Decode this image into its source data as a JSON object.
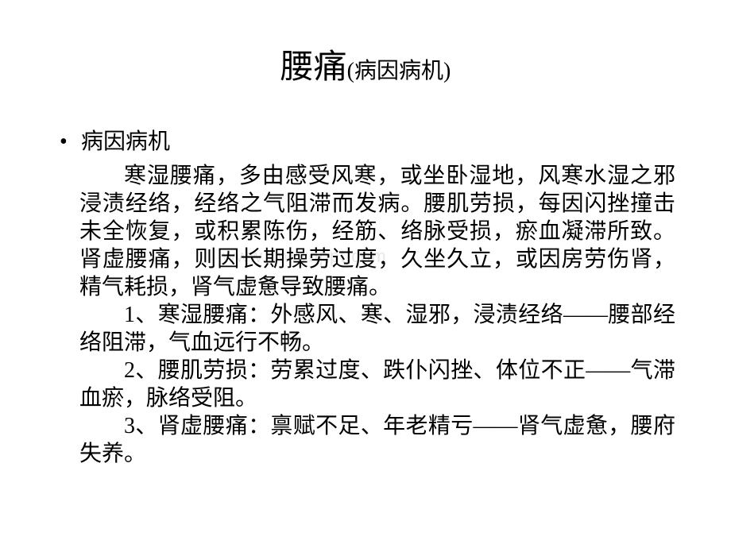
{
  "title": {
    "main": "腰痛",
    "sub": "(病因病机)"
  },
  "heading": {
    "bullet": "•",
    "text": "病因病机"
  },
  "paragraphs": {
    "intro": "寒湿腰痛，多由感受风寒，或坐卧湿地，风寒水湿之邪浸渍经络，经络之气阻滞而发病。腰肌劳损，每因闪挫撞击未全恢复，或积累陈伤，经筋、络脉受损，瘀血凝滞所致。肾虚腰痛，则因长期操劳过度，久坐久立，或因房劳伤肾，精气耗损，肾气虚惫导致腰痛。",
    "item1": "1、寒湿腰痛：外感风、寒、湿邪，浸渍经络——腰部经络阻滞，气血远行不畅。",
    "item2": "2、腰肌劳损：劳累过度、跌仆闪挫、体位不正——气滞血瘀，脉络受阻。",
    "item3": "3、肾虚腰痛：禀赋不足、年老精亏——肾气虚惫，腰府失养。"
  },
  "watermark": "www.1wordppt.com",
  "styling": {
    "background_color": "#ffffff",
    "text_color": "#000000",
    "watermark_color": "#e8e8e8",
    "title_main_fontsize": 42,
    "title_sub_fontsize": 28,
    "body_fontsize": 28,
    "font_family": "SimSun"
  }
}
